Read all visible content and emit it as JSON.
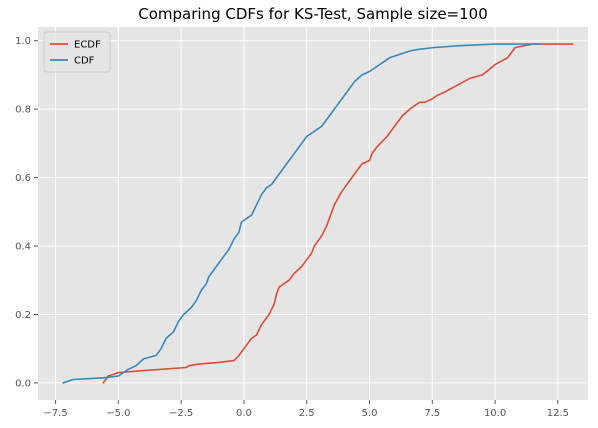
{
  "chart_data": {
    "type": "line",
    "title": "Comparing CDFs for KS-Test, Sample size=100",
    "xlabel": "",
    "ylabel": "",
    "xlim": [
      -8.2,
      13.7
    ],
    "ylim": [
      -0.05,
      1.04
    ],
    "x_ticks": [
      -7.5,
      -5.0,
      -2.5,
      0.0,
      2.5,
      5.0,
      7.5,
      10.0,
      12.5
    ],
    "x_tick_labels": [
      "−7.5",
      "−5.0",
      "−2.5",
      "0.0",
      "2.5",
      "5.0",
      "7.5",
      "10.0",
      "12.5"
    ],
    "y_ticks": [
      0.0,
      0.2,
      0.4,
      0.6,
      0.8,
      1.0
    ],
    "y_tick_labels": [
      "0.0",
      "0.2",
      "0.4",
      "0.6",
      "0.8",
      "1.0"
    ],
    "grid": true,
    "background": "#e5e5e5",
    "legend_position": "upper-left",
    "series": [
      {
        "name": "ECDF",
        "color": "#e24a33",
        "x": [
          -5.6,
          -5.4,
          -5.0,
          -4.2,
          -2.3,
          -2.2,
          -1.8,
          -1.0,
          -0.4,
          -0.2,
          0.0,
          0.2,
          0.3,
          0.5,
          0.7,
          0.8,
          0.9,
          1.0,
          1.2,
          1.3,
          1.4,
          1.6,
          1.8,
          2.0,
          2.3,
          2.5,
          2.7,
          2.8,
          3.1,
          3.3,
          3.5,
          3.6,
          3.9,
          4.1,
          4.3,
          4.5,
          4.7,
          5.0,
          5.1,
          5.3,
          5.7,
          6.0,
          6.3,
          6.6,
          6.8,
          7.0,
          7.2,
          7.5,
          7.7,
          8.0,
          8.5,
          9.0,
          9.5,
          10.0,
          10.5,
          10.8,
          11.5,
          13.1
        ],
        "y": [
          0.0,
          0.02,
          0.03,
          0.035,
          0.045,
          0.05,
          0.055,
          0.06,
          0.065,
          0.08,
          0.1,
          0.12,
          0.13,
          0.14,
          0.17,
          0.18,
          0.19,
          0.2,
          0.23,
          0.26,
          0.28,
          0.29,
          0.3,
          0.32,
          0.34,
          0.36,
          0.38,
          0.4,
          0.43,
          0.46,
          0.5,
          0.52,
          0.56,
          0.58,
          0.6,
          0.62,
          0.64,
          0.65,
          0.67,
          0.69,
          0.72,
          0.75,
          0.78,
          0.8,
          0.81,
          0.82,
          0.82,
          0.83,
          0.84,
          0.85,
          0.87,
          0.89,
          0.9,
          0.93,
          0.95,
          0.98,
          0.99,
          0.99
        ]
      },
      {
        "name": "CDF",
        "color": "#348abd",
        "x": [
          -7.2,
          -6.8,
          -5.6,
          -5.0,
          -4.8,
          -4.6,
          -4.3,
          -4.0,
          -3.5,
          -3.3,
          -3.1,
          -2.8,
          -2.6,
          -2.4,
          -2.1,
          -1.9,
          -1.7,
          -1.5,
          -1.4,
          -1.2,
          -1.0,
          -0.8,
          -0.6,
          -0.4,
          -0.2,
          -0.1,
          0.1,
          0.3,
          0.5,
          0.7,
          0.9,
          1.1,
          1.3,
          1.5,
          1.7,
          1.9,
          2.1,
          2.3,
          2.5,
          2.7,
          2.9,
          3.1,
          3.3,
          3.5,
          3.7,
          3.9,
          4.1,
          4.4,
          4.7,
          5.0,
          5.4,
          5.8,
          6.2,
          6.6,
          7.0,
          7.6,
          8.5,
          10.0,
          11.8
        ],
        "y": [
          0.0,
          0.01,
          0.015,
          0.02,
          0.03,
          0.04,
          0.05,
          0.07,
          0.08,
          0.1,
          0.13,
          0.15,
          0.18,
          0.2,
          0.22,
          0.24,
          0.27,
          0.29,
          0.31,
          0.33,
          0.35,
          0.37,
          0.39,
          0.42,
          0.44,
          0.47,
          0.48,
          0.49,
          0.52,
          0.55,
          0.57,
          0.58,
          0.6,
          0.62,
          0.64,
          0.66,
          0.68,
          0.7,
          0.72,
          0.73,
          0.74,
          0.75,
          0.77,
          0.79,
          0.81,
          0.83,
          0.85,
          0.88,
          0.9,
          0.91,
          0.93,
          0.95,
          0.96,
          0.97,
          0.975,
          0.98,
          0.985,
          0.99,
          0.99
        ]
      }
    ]
  }
}
